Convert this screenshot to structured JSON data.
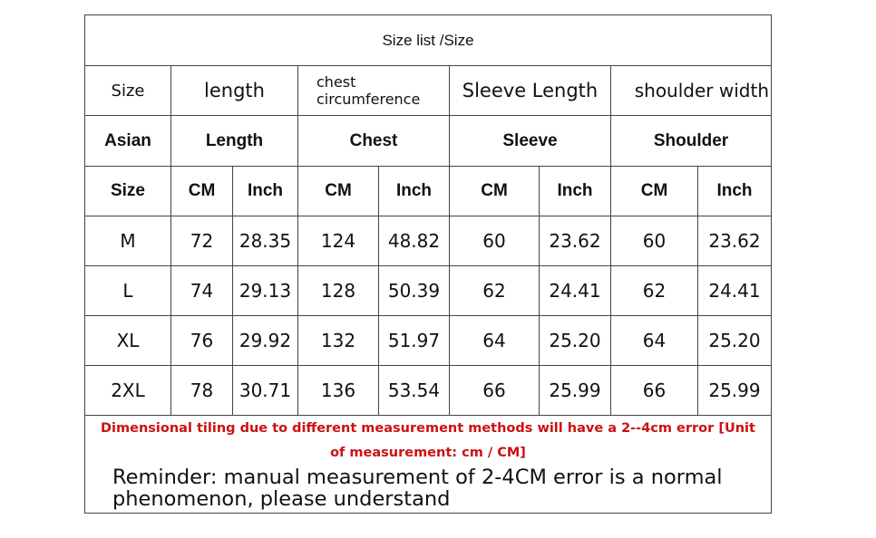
{
  "table": {
    "title": "Size list /Size",
    "header_rows": [
      [
        "Size",
        "length",
        "chest circumference",
        "Sleeve Length",
        "shoulder width"
      ],
      [
        "Asian",
        "Length",
        "Chest",
        "Sleeve",
        "Shoulder"
      ],
      [
        "Size",
        "CM",
        "Inch",
        "CM",
        "Inch",
        "CM",
        "Inch",
        "CM",
        "Inch"
      ]
    ],
    "rows": [
      [
        "M",
        "72",
        "28.35",
        "124",
        "48.82",
        "60",
        "23.62",
        "60",
        "23.62"
      ],
      [
        "L",
        "74",
        "29.13",
        "128",
        "50.39",
        "62",
        "24.41",
        "62",
        "24.41"
      ],
      [
        "XL",
        "76",
        "29.92",
        "132",
        "51.97",
        "64",
        "25.20",
        "64",
        "25.20"
      ],
      [
        "2XL",
        "78",
        "30.71",
        "136",
        "53.54",
        "66",
        "25.99",
        "66",
        "25.99"
      ]
    ],
    "note": "Dimensional tiling due to different measurement methods will have a 2--4cm error [Unit of measurement: cm / CM]",
    "reminder": "Reminder: manual measurement of 2-4CM error is a normal phenomenon, please understand"
  }
}
